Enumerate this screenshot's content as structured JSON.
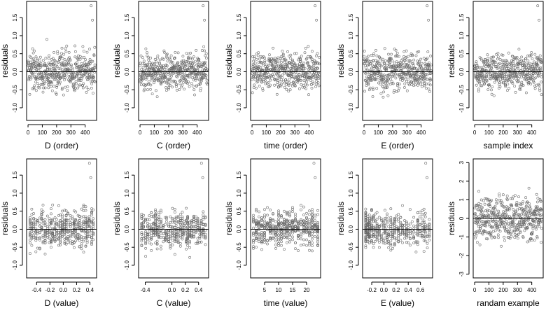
{
  "colors": {
    "background": "#ffffff",
    "axes": "#000000",
    "points": "#6a6a6a",
    "reference_line": "#000000"
  },
  "chart_data": [
    {
      "type": "scatter",
      "xlabel": "D (order)",
      "ylabel": "residuals",
      "xlim": [
        -10,
        480
      ],
      "ylim": [
        -1.35,
        1.95
      ],
      "xticks": [
        0,
        100,
        200,
        300,
        400
      ],
      "xtick_labels": [
        "0",
        "100",
        "200",
        "300",
        "400"
      ],
      "yticks": [
        -1,
        -0.5,
        0,
        0.5,
        1,
        1.5
      ],
      "ytick_labels": [
        "-1.0",
        "-0.5",
        "0.0",
        "0.5",
        "1.0",
        "1.5"
      ],
      "hline": 0,
      "n_points": 470,
      "x_range": [
        0,
        470
      ],
      "y_range": [
        -1.25,
        1.85
      ],
      "series": [
        {
          "x": [],
          "y": []
        }
      ]
    },
    {
      "type": "scatter",
      "xlabel": "C (order)",
      "ylabel": "residuals",
      "xlim": [
        -10,
        480
      ],
      "ylim": [
        -1.35,
        1.95
      ],
      "xticks": [
        0,
        100,
        200,
        300,
        400
      ],
      "xtick_labels": [
        "0",
        "100",
        "200",
        "300",
        "400"
      ],
      "yticks": [
        -1,
        -0.5,
        0,
        0.5,
        1,
        1.5
      ],
      "ytick_labels": [
        "-1.0",
        "-0.5",
        "0.0",
        "0.5",
        "1.0",
        "1.5"
      ],
      "hline": 0,
      "n_points": 470,
      "x_range": [
        0,
        470
      ],
      "y_range": [
        -1.25,
        1.85
      ],
      "series": [
        {
          "x": [],
          "y": []
        }
      ]
    },
    {
      "type": "scatter",
      "xlabel": "time (order)",
      "ylabel": "residuals",
      "xlim": [
        -10,
        480
      ],
      "ylim": [
        -1.35,
        1.95
      ],
      "xticks": [
        0,
        100,
        200,
        300,
        400
      ],
      "xtick_labels": [
        "0",
        "100",
        "200",
        "300",
        "400"
      ],
      "yticks": [
        -1,
        -0.5,
        0,
        0.5,
        1,
        1.5
      ],
      "ytick_labels": [
        "-1.0",
        "-0.5",
        "0.0",
        "0.5",
        "1.0",
        "1.5"
      ],
      "hline": 0,
      "n_points": 470,
      "x_range": [
        0,
        470
      ],
      "y_range": [
        -1.25,
        1.85
      ],
      "series": [
        {
          "x": [],
          "y": []
        }
      ]
    },
    {
      "type": "scatter",
      "xlabel": "E (order)",
      "ylabel": "residuals",
      "xlim": [
        -10,
        480
      ],
      "ylim": [
        -1.35,
        1.95
      ],
      "xticks": [
        0,
        100,
        200,
        300,
        400
      ],
      "xtick_labels": [
        "0",
        "100",
        "200",
        "300",
        "400"
      ],
      "yticks": [
        -1,
        -0.5,
        0,
        0.5,
        1,
        1.5
      ],
      "ytick_labels": [
        "-1.0",
        "-0.5",
        "0.0",
        "0.5",
        "1.0",
        "1.5"
      ],
      "hline": 0,
      "n_points": 470,
      "x_range": [
        0,
        470
      ],
      "y_range": [
        -1.25,
        1.85
      ],
      "series": [
        {
          "x": [],
          "y": []
        }
      ]
    },
    {
      "type": "scatter",
      "xlabel": "sample index",
      "ylabel": "residuals",
      "xlim": [
        -10,
        480
      ],
      "ylim": [
        -1.35,
        1.95
      ],
      "xticks": [
        0,
        100,
        200,
        300,
        400
      ],
      "xtick_labels": [
        "0",
        "100",
        "200",
        "300",
        "400"
      ],
      "yticks": [
        -1,
        -0.5,
        0,
        0.5,
        1,
        1.5
      ],
      "ytick_labels": [
        "-1.0",
        "-0.5",
        "0.0",
        "0.5",
        "1.0",
        "1.5"
      ],
      "hline": 0,
      "n_points": 470,
      "x_range": [
        0,
        470
      ],
      "y_range": [
        -1.25,
        1.85
      ],
      "series": [
        {
          "x": [],
          "y": []
        }
      ]
    },
    {
      "type": "scatter",
      "xlabel": "D (value)",
      "ylabel": "residuals",
      "xlim": [
        -0.55,
        0.5
      ],
      "ylim": [
        -1.35,
        1.95
      ],
      "xticks": [
        -0.4,
        -0.2,
        0,
        0.2,
        0.4
      ],
      "xtick_labels": [
        "-0.4",
        "-0.2",
        "0.0",
        "0.2",
        "0.4"
      ],
      "yticks": [
        -1,
        -0.5,
        0,
        0.5,
        1,
        1.5
      ],
      "ytick_labels": [
        "-1.0",
        "-0.5",
        "0.0",
        "0.5",
        "1.0",
        "1.5"
      ],
      "hline": 0,
      "n_points": 470,
      "x_range": [
        -0.5,
        0.45
      ],
      "y_range": [
        -1.25,
        1.85
      ],
      "series": [
        {
          "x": [],
          "y": []
        }
      ]
    },
    {
      "type": "scatter",
      "xlabel": "C (value)",
      "ylabel": "residuals",
      "xlim": [
        -0.5,
        0.55
      ],
      "ylim": [
        -1.35,
        1.95
      ],
      "xticks": [
        -0.4,
        0,
        0.2,
        0.4
      ],
      "xtick_labels": [
        "-0.4",
        "0.0",
        "0.2",
        "0.4"
      ],
      "yticks": [
        -1,
        -0.5,
        0,
        0.5,
        1,
        1.5
      ],
      "ytick_labels": [
        "-1.0",
        "-0.5",
        "0.0",
        "0.5",
        "1.0",
        "1.5"
      ],
      "hline": 0,
      "n_points": 470,
      "x_range": [
        -0.45,
        0.5
      ],
      "y_range": [
        -1.25,
        1.85
      ],
      "series": [
        {
          "x": [],
          "y": []
        }
      ]
    },
    {
      "type": "scatter",
      "xlabel": "time (value)",
      "ylabel": "residuals",
      "xlim": [
        0,
        25
      ],
      "ylim": [
        -1.35,
        1.95
      ],
      "xticks": [
        5,
        10,
        15,
        20
      ],
      "xtick_labels": [
        "5",
        "10",
        "15",
        "20"
      ],
      "yticks": [
        -1,
        -0.5,
        0,
        0.5,
        1,
        1.5
      ],
      "ytick_labels": [
        "-1.0",
        "-0.5",
        "0.0",
        "0.5",
        "1.0",
        "1.5"
      ],
      "hline": 0,
      "n_points": 470,
      "x_range": [
        1,
        24
      ],
      "y_range": [
        -1.25,
        1.85
      ],
      "series": [
        {
          "x": [],
          "y": []
        }
      ]
    },
    {
      "type": "scatter",
      "xlabel": "E (value)",
      "ylabel": "residuals",
      "xlim": [
        -0.35,
        0.8
      ],
      "ylim": [
        -1.35,
        1.95
      ],
      "xticks": [
        -0.2,
        0,
        0.2,
        0.4,
        0.6
      ],
      "xtick_labels": [
        "-0.2",
        "0.0",
        "0.2",
        "0.4",
        "0.6"
      ],
      "yticks": [
        -1,
        -0.5,
        0,
        0.5,
        1,
        1.5
      ],
      "ytick_labels": [
        "-1.0",
        "-0.5",
        "0.0",
        "0.5",
        "1.0",
        "1.5"
      ],
      "hline": 0,
      "n_points": 470,
      "x_range": [
        -0.3,
        0.75
      ],
      "y_range": [
        -1.25,
        1.85
      ],
      "series": [
        {
          "x": [],
          "y": []
        }
      ]
    },
    {
      "type": "scatter",
      "xlabel": "randam example",
      "ylabel": "residuals",
      "xlim": [
        -10,
        480
      ],
      "ylim": [
        -3.2,
        3.2
      ],
      "xticks": [
        0,
        100,
        200,
        300,
        400
      ],
      "xtick_labels": [
        "0",
        "100",
        "200",
        "300",
        "400"
      ],
      "yticks": [
        -3,
        -2,
        -1,
        0,
        1,
        2,
        3
      ],
      "ytick_labels": [
        "-3",
        "-2",
        "-1",
        "0",
        "1",
        "2",
        "3"
      ],
      "hline": 0,
      "n_points": 470,
      "x_range": [
        0,
        470
      ],
      "y_range": [
        -3,
        3
      ],
      "series": [
        {
          "x": [],
          "y": []
        }
      ]
    }
  ]
}
